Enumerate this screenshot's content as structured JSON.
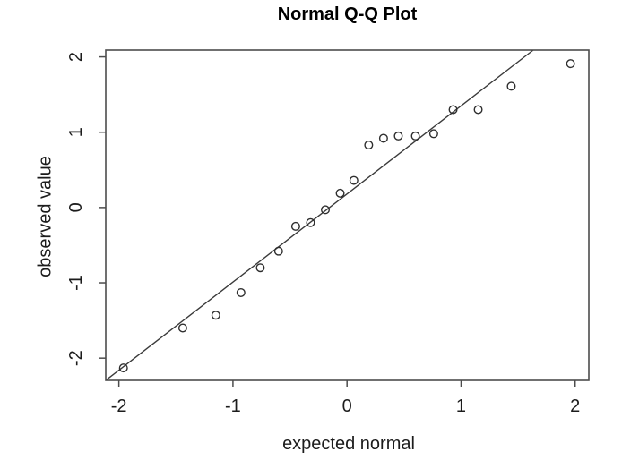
{
  "chart_data": {
    "type": "scatter",
    "title": "Normal Q-Q Plot",
    "xlabel": "expected normal",
    "ylabel": "observed value",
    "x_ticks": [
      -2,
      -1,
      0,
      1,
      2
    ],
    "y_ticks": [
      -2,
      -1,
      0,
      1,
      2
    ],
    "xlim": [
      -2.115,
      2.12
    ],
    "ylim": [
      -2.295,
      2.09
    ],
    "grid": false,
    "legend": "none",
    "marker": "open-circle",
    "colors": {
      "point": "#2e2e2e",
      "reference_line": "#3a3a3a",
      "box": "#4d4d4d",
      "tick": "#4d4d4d",
      "text": "#1c1c1c",
      "background": "#ffffff"
    },
    "reference_line": {
      "slope": 1.17,
      "intercept": 0.18
    },
    "points": [
      {
        "x": -1.96,
        "y": -2.13
      },
      {
        "x": -1.44,
        "y": -1.6
      },
      {
        "x": -1.15,
        "y": -1.43
      },
      {
        "x": -0.93,
        "y": -1.13
      },
      {
        "x": -0.76,
        "y": -0.8
      },
      {
        "x": -0.6,
        "y": -0.58
      },
      {
        "x": -0.45,
        "y": -0.25
      },
      {
        "x": -0.32,
        "y": -0.2
      },
      {
        "x": -0.19,
        "y": -0.03
      },
      {
        "x": -0.06,
        "y": 0.19
      },
      {
        "x": 0.06,
        "y": 0.36
      },
      {
        "x": 0.19,
        "y": 0.83
      },
      {
        "x": 0.32,
        "y": 0.92
      },
      {
        "x": 0.45,
        "y": 0.95
      },
      {
        "x": 0.6,
        "y": 0.95
      },
      {
        "x": 0.76,
        "y": 0.98
      },
      {
        "x": 0.93,
        "y": 1.3
      },
      {
        "x": 1.15,
        "y": 1.3
      },
      {
        "x": 1.44,
        "y": 1.61
      },
      {
        "x": 1.96,
        "y": 1.91
      }
    ]
  }
}
